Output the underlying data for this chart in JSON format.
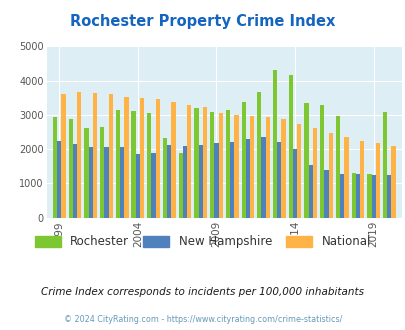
{
  "title": "Rochester Property Crime Index",
  "years": [
    1999,
    2000,
    2001,
    2002,
    2003,
    2004,
    2005,
    2006,
    2007,
    2008,
    2009,
    2010,
    2011,
    2012,
    2013,
    2014,
    2015,
    2016,
    2017,
    2018,
    2019,
    2020
  ],
  "rochester": [
    2950,
    2880,
    2620,
    2650,
    3150,
    3100,
    3050,
    2320,
    1900,
    3200,
    3080,
    3150,
    3380,
    3680,
    4320,
    4150,
    3350,
    3300,
    2970,
    1300,
    1270,
    3090
  ],
  "new_hampshire": [
    2250,
    2150,
    2060,
    2060,
    2060,
    1870,
    1900,
    2120,
    2080,
    2130,
    2180,
    2220,
    2310,
    2350,
    2200,
    2010,
    1550,
    1400,
    1290,
    1270,
    1250,
    1250
  ],
  "national": [
    3600,
    3680,
    3650,
    3620,
    3520,
    3480,
    3450,
    3380,
    3300,
    3220,
    3060,
    2990,
    2960,
    2950,
    2880,
    2740,
    2630,
    2470,
    2360,
    2240,
    2190,
    2100
  ],
  "rochester_color": "#7dc832",
  "nh_color": "#4f81bd",
  "national_color": "#ffb347",
  "bg_color": "#deeef5",
  "title_color": "#1565c0",
  "subtitle": "Crime Index corresponds to incidents per 100,000 inhabitants",
  "subtitle_color": "#1a1a1a",
  "footer": "© 2024 CityRating.com - https://www.cityrating.com/crime-statistics/",
  "footer_color": "#6699bb",
  "xtick_positions": [
    1999,
    2004,
    2009,
    2014,
    2019
  ],
  "ylim": [
    0,
    5000
  ]
}
